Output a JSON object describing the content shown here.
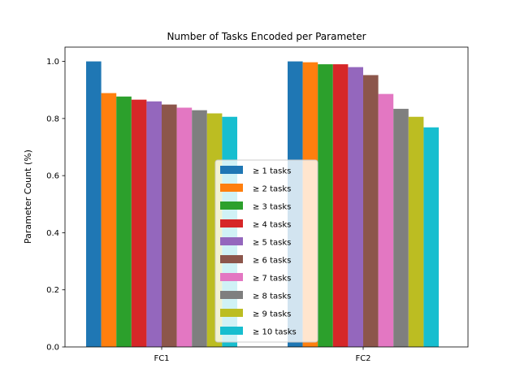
{
  "chart_data": {
    "type": "bar",
    "title": "Number of Tasks Encoded per Parameter",
    "xlabel": "",
    "ylabel": "Parameter Count (%)",
    "ylim": [
      0,
      1.05
    ],
    "yticks": [
      "0.0",
      "0.2",
      "0.4",
      "0.6",
      "0.8",
      "1.0"
    ],
    "categories": [
      "FC1",
      "FC2"
    ],
    "legend_placement": "center",
    "grid": false,
    "series": [
      {
        "name": "≥ 1 tasks",
        "color": "#1f77b4",
        "values": [
          1.0,
          1.0
        ]
      },
      {
        "name": "≥ 2 tasks",
        "color": "#ff7f0e",
        "values": [
          0.889,
          0.997
        ]
      },
      {
        "name": "≥ 3 tasks",
        "color": "#2ca02c",
        "values": [
          0.877,
          0.99
        ]
      },
      {
        "name": "≥ 4 tasks",
        "color": "#d62728",
        "values": [
          0.866,
          0.99
        ]
      },
      {
        "name": "≥ 5 tasks",
        "color": "#9467bd",
        "values": [
          0.86,
          0.98
        ]
      },
      {
        "name": "≥ 6 tasks",
        "color": "#8c564b",
        "values": [
          0.849,
          0.952
        ]
      },
      {
        "name": "≥ 7 tasks",
        "color": "#e377c2",
        "values": [
          0.838,
          0.886
        ]
      },
      {
        "name": "≥ 8 tasks",
        "color": "#7f7f7f",
        "values": [
          0.829,
          0.834
        ]
      },
      {
        "name": "≥ 9 tasks",
        "color": "#bcbd22",
        "values": [
          0.818,
          0.806
        ]
      },
      {
        "name": "≥ 10 tasks",
        "color": "#17becf",
        "values": [
          0.806,
          0.769
        ]
      }
    ]
  }
}
